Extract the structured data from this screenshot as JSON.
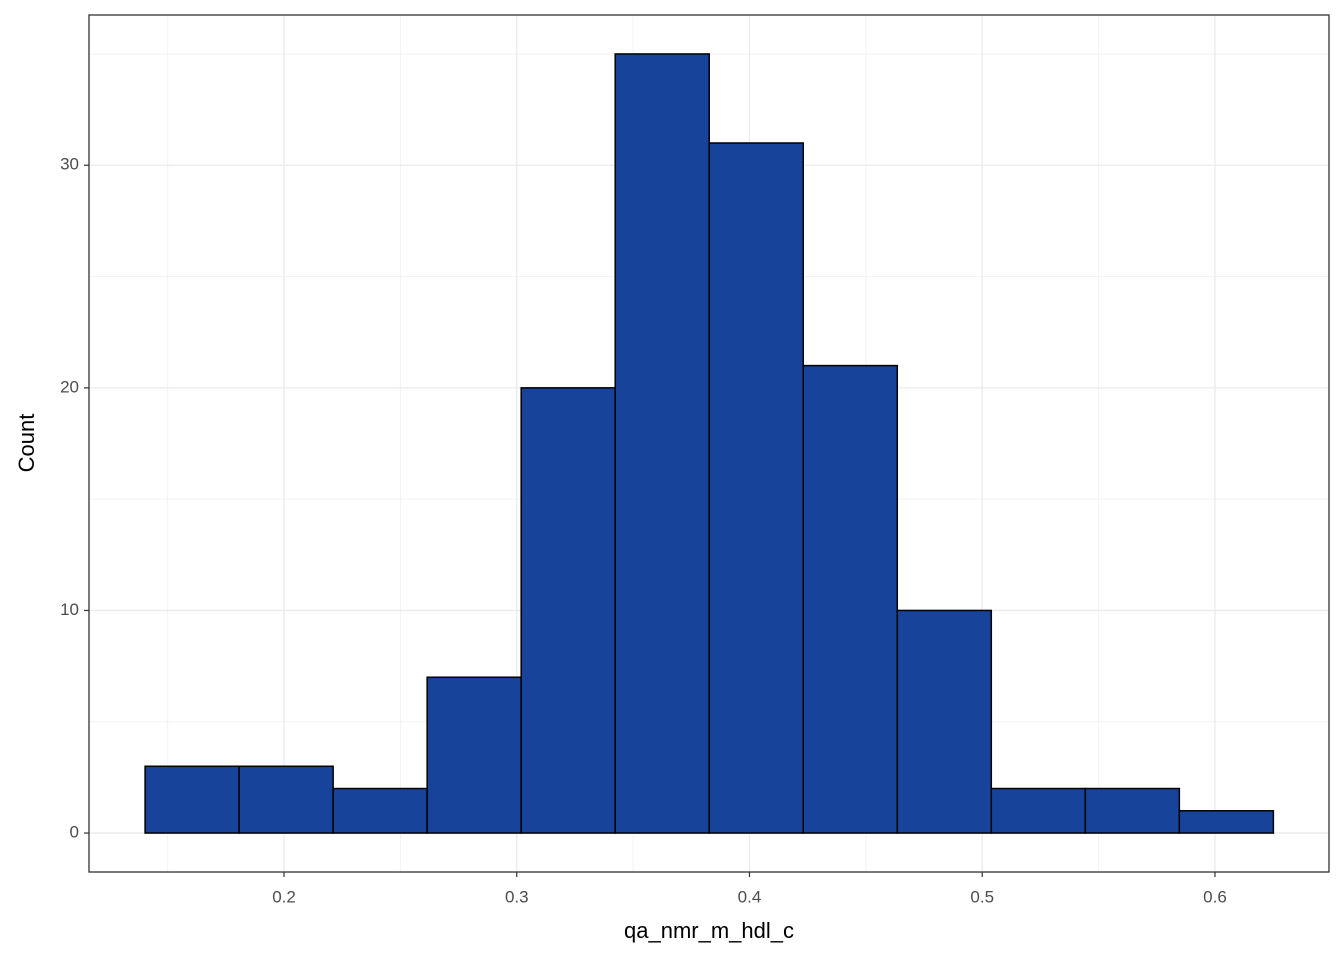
{
  "chart_data": {
    "type": "histogram",
    "x_label": "qa_nmr_m_hdl_c",
    "y_label": "Count",
    "bins": [
      0.1403,
      0.1807,
      0.2211,
      0.2615,
      0.3019,
      0.3423,
      0.3827,
      0.4231,
      0.4635,
      0.5039,
      0.5443,
      0.5847,
      0.6251
    ],
    "counts": [
      3,
      3,
      2,
      7,
      20,
      35,
      31,
      21,
      10,
      2,
      2,
      1
    ],
    "color": "#18439a",
    "edge_color": "#000000",
    "xlim": [
      0.1162,
      0.649
    ],
    "xticks": [
      0.2,
      0.3,
      0.4,
      0.5,
      0.6
    ],
    "ylim": [
      -1.75,
      36.75
    ],
    "yticks": [
      0,
      10,
      20,
      30
    ],
    "grid": true
  }
}
